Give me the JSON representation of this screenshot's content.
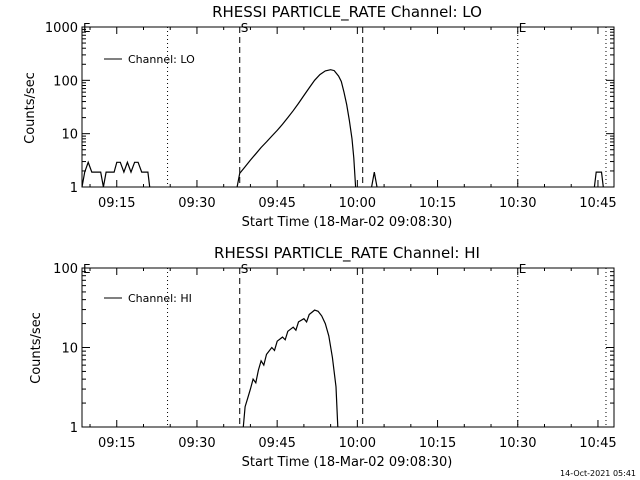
{
  "stamp": "14-Oct-2021 05:41",
  "chart_data": [
    {
      "type": "line",
      "title": "RHESSI PARTICLE_RATE Channel: LO",
      "xlabel": "Start Time (18-Mar-02 09:08:30)",
      "ylabel": "Counts/sec",
      "yscale": "log",
      "xlim": [
        "09:08:30",
        "10:48:00"
      ],
      "ylim": [
        1,
        1000
      ],
      "x_ticks": [
        "09:15",
        "09:30",
        "09:45",
        "10:00",
        "10:15",
        "10:30",
        "10:45"
      ],
      "y_ticks": [
        "1",
        "10",
        "100",
        "1000"
      ],
      "legend": {
        "position": "top-left",
        "entries": [
          "Channel: LO"
        ]
      },
      "color": "#000000",
      "markers": [
        {
          "time": "09:24:30",
          "style": "dotted",
          "label": ""
        },
        {
          "time": "09:38:00",
          "style": "dashed",
          "label": "S"
        },
        {
          "time": "10:01:00",
          "style": "dashed",
          "label": ""
        },
        {
          "time": "10:30:00",
          "style": "dotted",
          "label": "E"
        },
        {
          "time": "10:46:30",
          "style": "dotted",
          "label": ""
        }
      ],
      "edge_labels": [
        {
          "time": "09:08:30",
          "label": "E"
        }
      ],
      "series": [
        {
          "name": "Channel: LO",
          "segments": [
            [
              [
                "09:08:30",
                1.0
              ],
              [
                "09:09:00",
                1.9
              ],
              [
                "09:09:40",
                2.9
              ],
              [
                "09:10:20",
                1.9
              ],
              [
                "09:11:00",
                1.9
              ],
              [
                "09:11:30",
                1.9
              ],
              [
                "09:12:00",
                1.9
              ],
              [
                "09:12:30",
                1.0
              ],
              [
                "09:13:00",
                1.9
              ],
              [
                "09:13:30",
                1.9
              ],
              [
                "09:14:30",
                1.9
              ],
              [
                "09:15:00",
                2.9
              ],
              [
                "09:15:40",
                2.9
              ],
              [
                "09:16:20",
                1.9
              ],
              [
                "09:17:00",
                2.9
              ],
              [
                "09:17:40",
                1.9
              ],
              [
                "09:18:20",
                2.9
              ],
              [
                "09:19:00",
                2.9
              ],
              [
                "09:19:40",
                1.9
              ],
              [
                "09:20:20",
                1.9
              ],
              [
                "09:20:50",
                1.9
              ],
              [
                "09:21:10",
                1.0
              ]
            ],
            [
              [
                "09:37:30",
                1.0
              ],
              [
                "09:38:00",
                1.8
              ],
              [
                "09:39:00",
                2.4
              ],
              [
                "09:40:00",
                3.2
              ],
              [
                "09:41:00",
                4.2
              ],
              [
                "09:42:00",
                5.5
              ],
              [
                "09:43:00",
                7.0
              ],
              [
                "09:44:00",
                9.0
              ],
              [
                "09:45:00",
                11.5
              ],
              [
                "09:46:00",
                15
              ],
              [
                "09:47:00",
                20
              ],
              [
                "09:48:00",
                27
              ],
              [
                "09:49:00",
                37
              ],
              [
                "09:50:00",
                52
              ],
              [
                "09:51:00",
                72
              ],
              [
                "09:52:00",
                100
              ],
              [
                "09:53:00",
                128
              ],
              [
                "09:54:00",
                150
              ],
              [
                "09:55:00",
                158
              ],
              [
                "09:55:40",
                152
              ],
              [
                "09:56:30",
                120
              ],
              [
                "09:57:00",
                95
              ],
              [
                "09:57:30",
                60
              ],
              [
                "09:58:00",
                35
              ],
              [
                "09:58:30",
                18
              ],
              [
                "09:59:00",
                8
              ],
              [
                "09:59:20",
                3.5
              ],
              [
                "09:59:40",
                1.0
              ]
            ],
            [
              [
                "10:02:40",
                1.0
              ],
              [
                "10:03:10",
                1.9
              ],
              [
                "10:03:40",
                1.0
              ]
            ],
            [
              [
                "10:44:20",
                1.0
              ],
              [
                "10:44:40",
                1.9
              ],
              [
                "10:45:40",
                1.9
              ],
              [
                "10:46:00",
                1.0
              ]
            ]
          ]
        }
      ]
    },
    {
      "type": "line",
      "title": "RHESSI PARTICLE_RATE Channel: HI",
      "xlabel": "Start Time (18-Mar-02 09:08:30)",
      "ylabel": "Counts/sec",
      "yscale": "log",
      "xlim": [
        "09:08:30",
        "10:48:00"
      ],
      "ylim": [
        1,
        100
      ],
      "x_ticks": [
        "09:15",
        "09:30",
        "09:45",
        "10:00",
        "10:15",
        "10:30",
        "10:45"
      ],
      "y_ticks": [
        "1",
        "10",
        "100"
      ],
      "legend": {
        "position": "top-left",
        "entries": [
          "Channel: HI"
        ]
      },
      "color": "#000000",
      "markers": [
        {
          "time": "09:24:30",
          "style": "dotted",
          "label": ""
        },
        {
          "time": "09:38:00",
          "style": "dashed",
          "label": "S"
        },
        {
          "time": "10:01:00",
          "style": "dashed",
          "label": ""
        },
        {
          "time": "10:30:00",
          "style": "dotted",
          "label": "E"
        },
        {
          "time": "10:46:30",
          "style": "dotted",
          "label": ""
        }
      ],
      "edge_labels": [
        {
          "time": "09:08:30",
          "label": "E"
        }
      ],
      "series": [
        {
          "name": "Channel: HI",
          "segments": [
            [
              [
                "09:38:40",
                1.0
              ],
              [
                "09:39:00",
                1.8
              ],
              [
                "09:39:30",
                2.3
              ],
              [
                "09:40:00",
                3.0
              ],
              [
                "09:40:30",
                4.0
              ],
              [
                "09:41:00",
                3.6
              ],
              [
                "09:41:30",
                5.2
              ],
              [
                "09:42:00",
                6.8
              ],
              [
                "09:42:30",
                6.0
              ],
              [
                "09:43:00",
                8.2
              ],
              [
                "09:44:00",
                10
              ],
              [
                "09:44:30",
                9.2
              ],
              [
                "09:45:00",
                12
              ],
              [
                "09:46:00",
                13.5
              ],
              [
                "09:46:30",
                12.5
              ],
              [
                "09:47:00",
                16
              ],
              [
                "09:48:00",
                18
              ],
              [
                "09:48:30",
                16.5
              ],
              [
                "09:49:00",
                21
              ],
              [
                "09:50:00",
                23
              ],
              [
                "09:50:30",
                21
              ],
              [
                "09:51:00",
                26
              ],
              [
                "09:52:00",
                29.5
              ],
              [
                "09:52:40",
                28.5
              ],
              [
                "09:53:20",
                25
              ],
              [
                "09:54:00",
                20
              ],
              [
                "09:54:40",
                14
              ],
              [
                "09:55:20",
                7.5
              ],
              [
                "09:56:00",
                3.2
              ],
              [
                "09:56:20",
                1.0
              ]
            ]
          ]
        }
      ]
    }
  ]
}
